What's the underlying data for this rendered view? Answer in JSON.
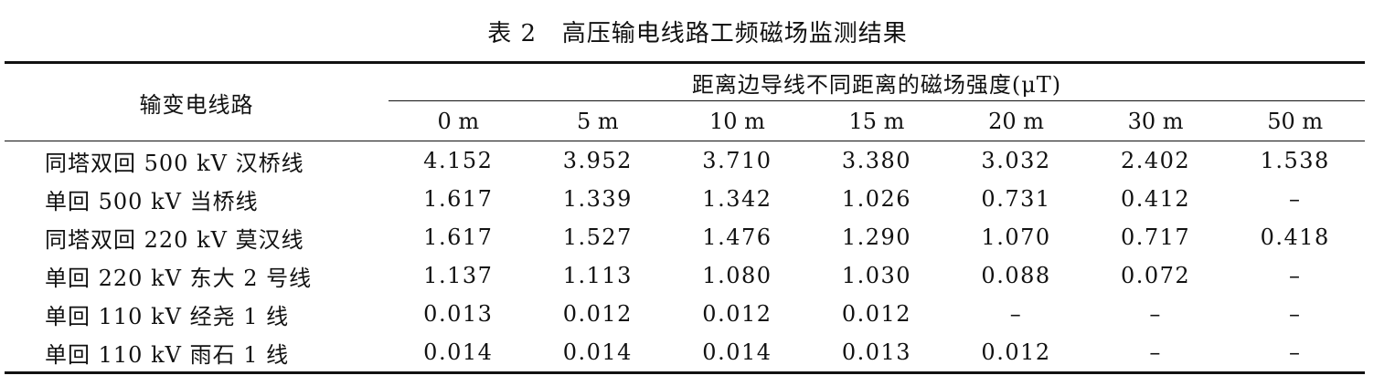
{
  "caption": "表 2   高压输电线路工频磁场监测结果",
  "table": {
    "row_header": "输变电线路",
    "group_header": "距离边导线不同距离的磁场强度(μT)",
    "distances": [
      "0 m",
      "5 m",
      "10 m",
      "15 m",
      "20 m",
      "30 m",
      "50 m"
    ],
    "rows": [
      {
        "line": "同塔双回 500 kV 汉桥线",
        "values": [
          "4.152",
          "3.952",
          "3.710",
          "3.380",
          "3.032",
          "2.402",
          "1.538"
        ]
      },
      {
        "line": "单回 500 kV 当桥线",
        "values": [
          "1.617",
          "1.339",
          "1.342",
          "1.026",
          "0.731",
          "0.412",
          "–"
        ]
      },
      {
        "line": "同塔双回 220 kV 莫汉线",
        "values": [
          "1.617",
          "1.527",
          "1.476",
          "1.290",
          "1.070",
          "0.717",
          "0.418"
        ]
      },
      {
        "line": "单回 220 kV 东大 2 号线",
        "values": [
          "1.137",
          "1.113",
          "1.080",
          "1.030",
          "0.088",
          "0.072",
          "–"
        ]
      },
      {
        "line": "单回 110 kV 经尧 1 线",
        "values": [
          "0.013",
          "0.012",
          "0.012",
          "0.012",
          "–",
          "–",
          "–"
        ]
      },
      {
        "line": "单回 110 kV 雨石 1 线",
        "values": [
          "0.014",
          "0.014",
          "0.014",
          "0.013",
          "0.012",
          "–",
          "–"
        ]
      }
    ]
  }
}
